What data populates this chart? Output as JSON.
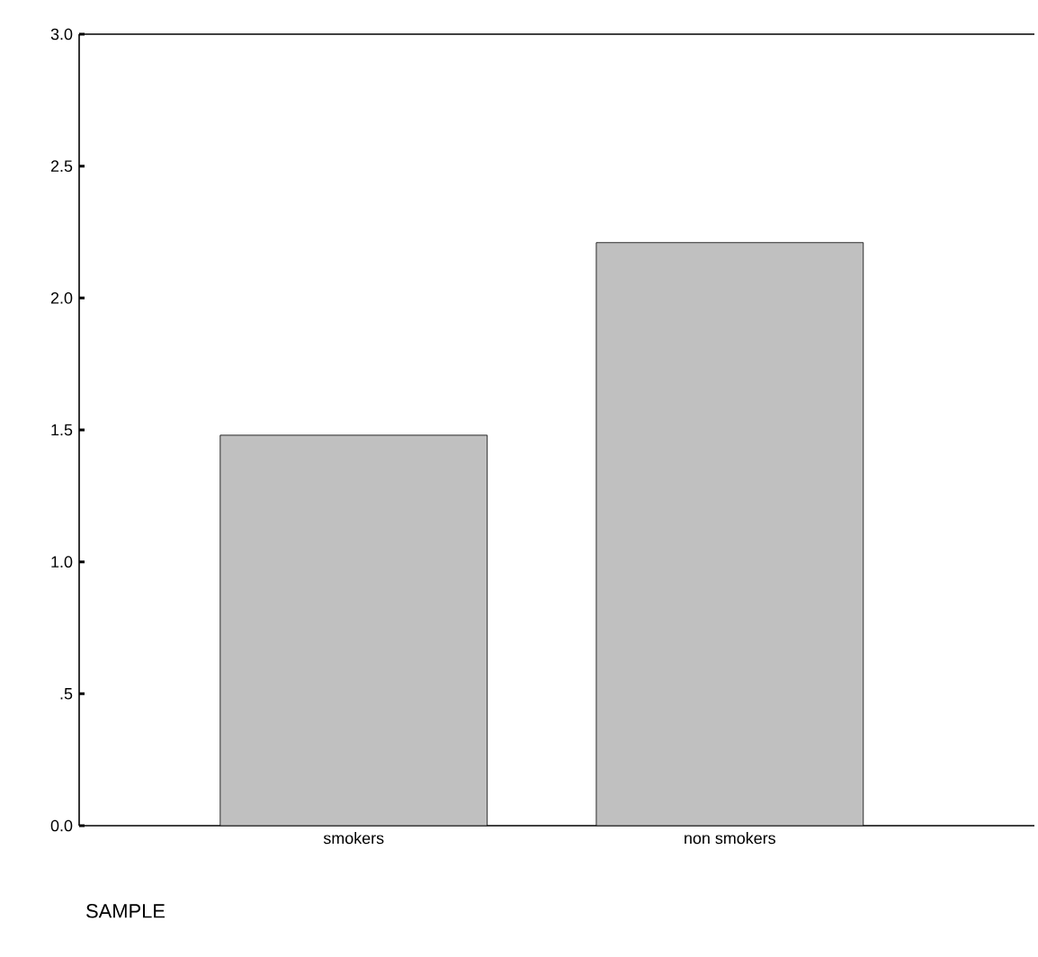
{
  "chart_data": {
    "type": "bar",
    "xlabel": "SAMPLE",
    "categories": [
      "smokers",
      "non smokers"
    ],
    "values": [
      1.48,
      2.21
    ],
    "color": "#c0c0c0",
    "ylim": [
      0,
      3
    ],
    "yticks": [
      {
        "value": 0,
        "label": "0.0"
      },
      {
        "value": 0.5,
        "label": ".5"
      },
      {
        "value": 1,
        "label": "1.0"
      },
      1.5,
      {
        "value": 2,
        "label": "2.0"
      },
      2.5,
      {
        "value": 3,
        "label": "3.0"
      }
    ],
    "tick_labels": "xy"
  }
}
